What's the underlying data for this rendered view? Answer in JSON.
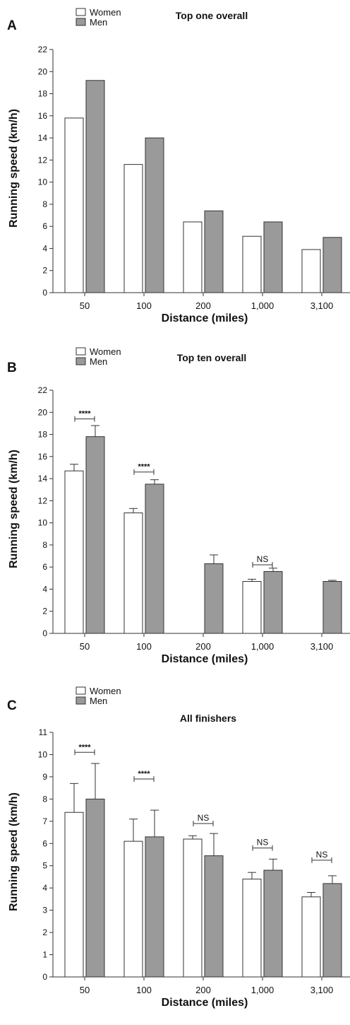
{
  "chart_data": [
    {
      "panel": "A",
      "type": "bar",
      "title": "Top one overall",
      "xlabel": "Distance (miles)",
      "ylabel": "Running speed (km/h)",
      "ylim": [
        0,
        22
      ],
      "yticks": [
        0,
        2,
        4,
        6,
        8,
        10,
        12,
        14,
        16,
        18,
        20,
        22
      ],
      "categories": [
        "50",
        "100",
        "200",
        "1,000",
        "3,100"
      ],
      "legend": {
        "placement": "top-left"
      },
      "series": [
        {
          "name": "Women",
          "color": "#ffffff",
          "values": [
            15.8,
            11.6,
            6.4,
            5.1,
            3.9
          ]
        },
        {
          "name": "Men",
          "color": "#9a9a9a",
          "values": [
            19.2,
            14.0,
            7.4,
            6.4,
            5.0
          ]
        }
      ],
      "annotations": []
    },
    {
      "panel": "B",
      "type": "bar",
      "title": "Top ten overall",
      "xlabel": "Distance (miles)",
      "ylabel": "Running speed (km/h)",
      "ylim": [
        0,
        22
      ],
      "yticks": [
        0,
        2,
        4,
        6,
        8,
        10,
        12,
        14,
        16,
        18,
        20,
        22
      ],
      "categories": [
        "50",
        "100",
        "200",
        "1,000",
        "3,100"
      ],
      "legend": {
        "placement": "top-left"
      },
      "series": [
        {
          "name": "Women",
          "color": "#ffffff",
          "values": [
            14.7,
            10.9,
            null,
            4.7,
            null
          ],
          "errors": [
            0.6,
            0.4,
            null,
            0.2,
            null
          ]
        },
        {
          "name": "Men",
          "color": "#9a9a9a",
          "values": [
            17.8,
            13.5,
            6.3,
            5.6,
            4.7
          ],
          "errors": [
            1.0,
            0.4,
            0.8,
            0.3,
            0.1
          ]
        }
      ],
      "annotations": [
        {
          "category": 0,
          "label": "****",
          "y": 19.4
        },
        {
          "category": 1,
          "label": "****",
          "y": 14.6
        },
        {
          "category": 3,
          "label": "NS",
          "y": 6.2
        }
      ]
    },
    {
      "panel": "C",
      "type": "bar",
      "title": "All finishers",
      "xlabel": "Distance (miles)",
      "ylabel": "Running speed (km/h)",
      "ylim": [
        0,
        11
      ],
      "yticks": [
        0,
        1,
        2,
        3,
        4,
        5,
        6,
        7,
        8,
        9,
        10,
        11
      ],
      "categories": [
        "50",
        "100",
        "200",
        "1,000",
        "3,100"
      ],
      "legend": {
        "placement": "top-left"
      },
      "series": [
        {
          "name": "Women",
          "color": "#ffffff",
          "values": [
            7.4,
            6.1,
            6.2,
            4.4,
            3.6
          ],
          "errors": [
            1.3,
            1.0,
            0.15,
            0.3,
            0.2
          ]
        },
        {
          "name": "Men",
          "color": "#9a9a9a",
          "values": [
            8.0,
            6.3,
            5.45,
            4.8,
            4.2
          ],
          "errors": [
            1.6,
            1.2,
            1.0,
            0.5,
            0.35
          ]
        }
      ],
      "annotations": [
        {
          "category": 0,
          "label": "****",
          "y": 10.1
        },
        {
          "category": 1,
          "label": "****",
          "y": 8.9
        },
        {
          "category": 2,
          "label": "NS",
          "y": 6.9
        },
        {
          "category": 3,
          "label": "NS",
          "y": 5.8
        },
        {
          "category": 4,
          "label": "NS",
          "y": 5.25
        }
      ]
    }
  ]
}
